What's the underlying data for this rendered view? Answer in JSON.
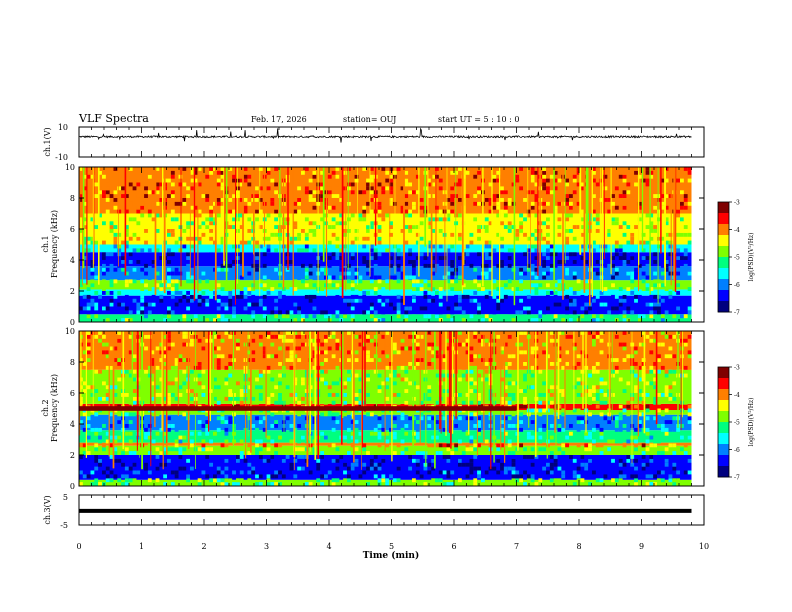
{
  "header": {
    "title": "VLF Spectra",
    "date": "Feb. 17, 2026",
    "station": "station= OUJ",
    "start": "start  UT  =   5  : 10 : 0"
  },
  "chart_data": [
    {
      "type": "line",
      "name": "ch1-waveform",
      "ylabel": "ch.1(V)",
      "ylim": [
        -10,
        10
      ],
      "tick_labels": [
        "10",
        "-10"
      ],
      "x_range_min": [
        0,
        9.8
      ],
      "baseline_v": 3.5,
      "noise_amplitude_v": 1.2
    },
    {
      "type": "heatmap",
      "name": "ch1-spectrogram",
      "ylabel_line1": "ch.1",
      "ylabel_line2": "Frequency (kHz)",
      "ylim_khz": [
        0,
        10
      ],
      "y_tick_labels": [
        "0",
        "2",
        "4",
        "6",
        "8",
        "10"
      ],
      "bands_khz": [
        {
          "from": 0,
          "to": 0.5,
          "level": -5.2
        },
        {
          "from": 0.5,
          "to": 1.7,
          "level": -6.3
        },
        {
          "from": 1.7,
          "to": 2.1,
          "level": -5.8
        },
        {
          "from": 2.1,
          "to": 2.7,
          "level": -5.0
        },
        {
          "from": 2.7,
          "to": 3.6,
          "level": -6.0
        },
        {
          "from": 3.6,
          "to": 4.5,
          "level": -6.6
        },
        {
          "from": 4.5,
          "to": 5.0,
          "level": -5.6
        },
        {
          "from": 5.0,
          "to": 7.0,
          "level": -4.6
        },
        {
          "from": 7.0,
          "to": 10,
          "level": -3.9
        }
      ],
      "colorbar": {
        "label": "log(PSD)(V²/Hz)",
        "min": -7,
        "max": -3,
        "tick_labels": [
          "-3",
          "-4",
          "-5",
          "-6",
          "-7"
        ]
      }
    },
    {
      "type": "heatmap",
      "name": "ch2-spectrogram",
      "ylabel_line1": "ch.2",
      "ylabel_line2": "Frequency (kHz)",
      "ylim_khz": [
        0,
        10
      ],
      "y_tick_labels": [
        "0",
        "2",
        "4",
        "6",
        "8",
        "10"
      ],
      "bands_khz": [
        {
          "from": 0,
          "to": 0.4,
          "level": -5.0
        },
        {
          "from": 0.4,
          "to": 2.0,
          "level": -6.4
        },
        {
          "from": 2.0,
          "to": 2.6,
          "level": -5.0
        },
        {
          "from": 2.6,
          "to": 2.8,
          "level": -4.0
        },
        {
          "from": 2.8,
          "to": 3.6,
          "level": -5.2
        },
        {
          "from": 3.6,
          "to": 4.6,
          "level": -5.9
        },
        {
          "from": 4.6,
          "to": 4.9,
          "level": -5.0
        },
        {
          "from": 4.9,
          "to": 5.3,
          "level": -3.7
        },
        {
          "from": 5.3,
          "to": 7.5,
          "level": -4.8
        },
        {
          "from": 7.5,
          "to": 10,
          "level": -4.1
        }
      ],
      "line_5khz_until_min": 7.0,
      "colorbar": {
        "label": "log(PSD)(V²/Hz)",
        "min": -7,
        "max": -3,
        "tick_labels": [
          "-3",
          "-4",
          "-5",
          "-6",
          "-7"
        ]
      }
    },
    {
      "type": "line",
      "name": "ch3-waveform",
      "ylabel": "ch.3(V)",
      "ylim": [
        -5,
        5
      ],
      "tick_labels": [
        "5",
        "-5"
      ],
      "x_range_min": [
        0,
        9.8
      ],
      "baseline_v": -0.3
    }
  ],
  "x_axis": {
    "label": "Time (min)",
    "range": [
      0,
      10
    ],
    "tick_labels": [
      "0",
      "1",
      "2",
      "3",
      "4",
      "5",
      "6",
      "7",
      "8",
      "9",
      "10"
    ]
  },
  "colors": {
    "scale": [
      "#00007f",
      "#0000ff",
      "#007fff",
      "#00ffff",
      "#00ff7f",
      "#7fff00",
      "#ffff00",
      "#ff7f00",
      "#ff0000",
      "#7f0000"
    ]
  }
}
